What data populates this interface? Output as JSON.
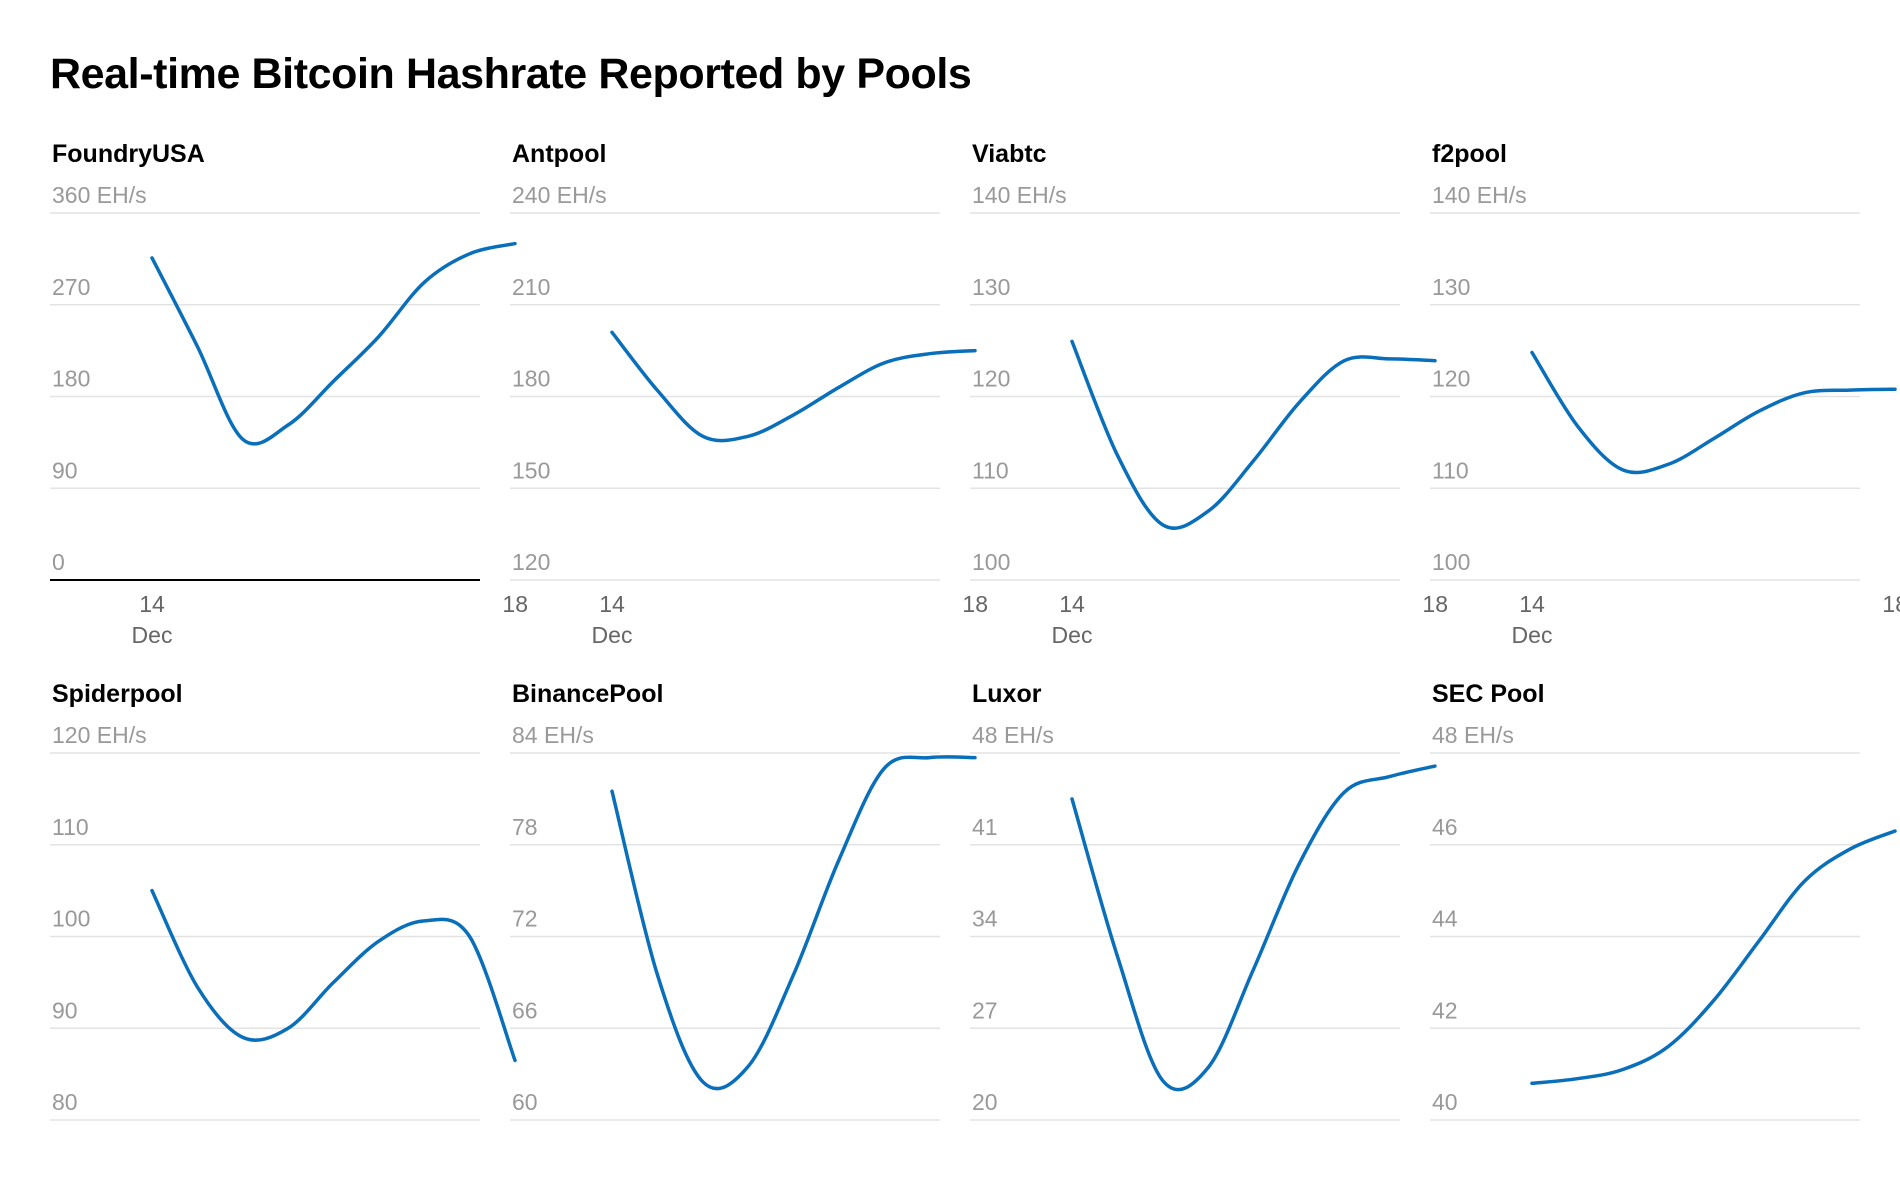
{
  "title": "Real-time Bitcoin Hashrate Reported by Pools",
  "colors": {
    "series": "#0a6fba",
    "grid": "#e3e3e3",
    "tick": "#999999",
    "baseline": "#000000"
  },
  "x_axis": {
    "ticks": [
      14,
      18
    ],
    "first_tick_sublabel": "Dec"
  },
  "chart_data": [
    {
      "type": "line",
      "title": "FoundryUSA",
      "unit": "EH/s",
      "ylim": [
        0,
        360
      ],
      "yticks": [
        0,
        90,
        180,
        270,
        360
      ],
      "x": [
        14,
        14.5,
        15,
        15.5,
        16,
        16.5,
        17,
        17.5,
        18
      ],
      "series": [
        {
          "values": [
            316,
            229,
            138,
            152,
            195,
            239,
            292,
            320,
            330
          ]
        }
      ]
    },
    {
      "type": "line",
      "title": "Antpool",
      "unit": "EH/s",
      "ylim": [
        120,
        240
      ],
      "yticks": [
        120,
        150,
        180,
        210,
        240
      ],
      "x": [
        14,
        14.5,
        15,
        15.5,
        16,
        16.5,
        17,
        17.5,
        18
      ],
      "series": [
        {
          "values": [
            201,
            182,
            167,
            167,
            174,
            183,
            191,
            194,
            195
          ]
        }
      ]
    },
    {
      "type": "line",
      "title": "Viabtc",
      "unit": "EH/s",
      "ylim": [
        100,
        140
      ],
      "yticks": [
        100,
        110,
        120,
        130,
        140
      ],
      "x": [
        14,
        14.5,
        15,
        15.5,
        16,
        16.5,
        17,
        17.5,
        18
      ],
      "series": [
        {
          "values": [
            126.0,
            113.6,
            106.0,
            107.5,
            113.0,
            119.3,
            123.9,
            124.1,
            123.9
          ]
        }
      ]
    },
    {
      "type": "line",
      "title": "f2pool",
      "unit": "EH/s",
      "ylim": [
        100,
        140
      ],
      "yticks": [
        100,
        110,
        120,
        130,
        140
      ],
      "x": [
        14,
        14.5,
        15,
        15.5,
        16,
        16.5,
        17,
        17.5,
        18
      ],
      "series": [
        {
          "values": [
            124.8,
            116.8,
            112.0,
            112.6,
            115.4,
            118.4,
            120.4,
            120.7,
            120.8
          ]
        }
      ]
    },
    {
      "type": "line",
      "title": "Spiderpool",
      "unit": "EH/s",
      "ylim": [
        80,
        120
      ],
      "yticks": [
        80,
        90,
        100,
        110,
        120
      ],
      "x": [
        14,
        14.5,
        15,
        15.5,
        16,
        16.5,
        17,
        17.5,
        18
      ],
      "series": [
        {
          "values": [
            105.0,
            94.5,
            89.0,
            90.0,
            95.0,
            99.5,
            101.7,
            100.0,
            86.5
          ]
        }
      ]
    },
    {
      "type": "line",
      "title": "BinancePool",
      "unit": "EH/s",
      "ylim": [
        60,
        84
      ],
      "yticks": [
        60,
        66,
        72,
        78,
        84
      ],
      "x": [
        14,
        14.5,
        15,
        15.5,
        16,
        16.5,
        17,
        17.5,
        18
      ],
      "series": [
        {
          "values": [
            81.5,
            69.5,
            62.5,
            63.5,
            69.5,
            77.0,
            83.0,
            83.7,
            83.7
          ]
        }
      ]
    },
    {
      "type": "line",
      "title": "Luxor",
      "unit": "EH/s",
      "ylim": [
        20,
        48
      ],
      "yticks": [
        20,
        27,
        34,
        41,
        48
      ],
      "x": [
        14,
        14.5,
        15,
        15.5,
        16,
        16.5,
        17,
        17.5,
        18
      ],
      "series": [
        {
          "values": [
            44.5,
            32.5,
            23.0,
            24.0,
            31.5,
            39.5,
            45.0,
            46.2,
            47.0
          ]
        }
      ]
    },
    {
      "type": "line",
      "title": "SEC Pool",
      "unit": "EH/s",
      "ylim": [
        40,
        48
      ],
      "yticks": [
        40,
        42,
        44,
        46,
        48
      ],
      "x": [
        14,
        14.5,
        15,
        15.5,
        16,
        16.5,
        17,
        17.5,
        18
      ],
      "series": [
        {
          "values": [
            40.8,
            40.9,
            41.1,
            41.6,
            42.6,
            43.9,
            45.2,
            45.9,
            46.3
          ]
        }
      ]
    }
  ]
}
